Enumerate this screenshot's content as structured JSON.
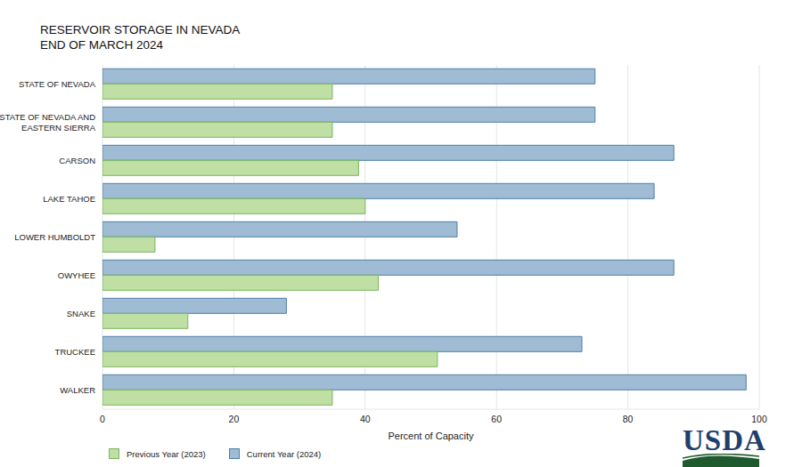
{
  "chart_data": {
    "type": "bar",
    "orientation": "horizontal",
    "title": "RESERVOIR STORAGE IN NEVADA",
    "subtitle": "END OF MARCH 2024",
    "x_label": "Percent of Capacity",
    "categories": [
      "STATE OF NEVADA",
      "STATE OF NEVADA AND EASTERN SIERRA",
      "CARSON",
      "LAKE TAHOE",
      "LOWER HUMBOLDT",
      "OWYHEE",
      "SNAKE",
      "TRUCKEE",
      "WALKER"
    ],
    "series": [
      {
        "name": "Previous Year (2023)",
        "color": "#bfdfa5",
        "values": [
          35,
          35,
          39,
          40,
          8,
          42,
          13,
          51,
          35
        ]
      },
      {
        "name": "Current Year (2024)",
        "color": "#9fbcd4",
        "values": [
          75,
          75,
          87,
          84,
          54,
          87,
          28,
          73,
          98
        ]
      }
    ],
    "xlim": [
      0,
      100
    ],
    "xticks": [
      0,
      20,
      40,
      60,
      80,
      100
    ],
    "grid": true,
    "legend": "bottom left",
    "logo": "USDA"
  }
}
